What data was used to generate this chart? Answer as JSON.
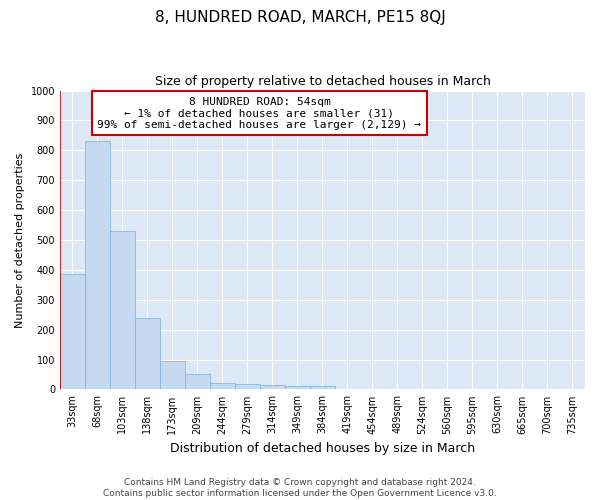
{
  "title": "8, HUNDRED ROAD, MARCH, PE15 8QJ",
  "subtitle": "Size of property relative to detached houses in March",
  "xlabel": "Distribution of detached houses by size in March",
  "ylabel": "Number of detached properties",
  "bar_color": "#c5d9f0",
  "bar_edge_color": "#7bafd4",
  "categories": [
    "33sqm",
    "68sqm",
    "103sqm",
    "138sqm",
    "173sqm",
    "209sqm",
    "244sqm",
    "279sqm",
    "314sqm",
    "349sqm",
    "384sqm",
    "419sqm",
    "454sqm",
    "489sqm",
    "524sqm",
    "560sqm",
    "595sqm",
    "630sqm",
    "665sqm",
    "700sqm",
    "735sqm"
  ],
  "values": [
    385,
    830,
    530,
    240,
    95,
    50,
    20,
    17,
    15,
    10,
    10,
    0,
    0,
    0,
    0,
    0,
    0,
    0,
    0,
    0,
    0
  ],
  "ylim": [
    0,
    1000
  ],
  "yticks": [
    0,
    100,
    200,
    300,
    400,
    500,
    600,
    700,
    800,
    900,
    1000
  ],
  "annotation_text": "8 HUNDRED ROAD: 54sqm\n← 1% of detached houses are smaller (31)\n99% of semi-detached houses are larger (2,129) →",
  "annotation_box_color": "#ffffff",
  "annotation_box_edge": "#cc0000",
  "footer_text": "Contains HM Land Registry data © Crown copyright and database right 2024.\nContains public sector information licensed under the Open Government Licence v3.0.",
  "background_color": "#dce8f5",
  "grid_color": "#ffffff",
  "fig_background": "#ffffff",
  "title_fontsize": 11,
  "subtitle_fontsize": 9,
  "xlabel_fontsize": 9,
  "ylabel_fontsize": 8,
  "tick_fontsize": 7,
  "annotation_fontsize": 8,
  "footer_fontsize": 6.5
}
